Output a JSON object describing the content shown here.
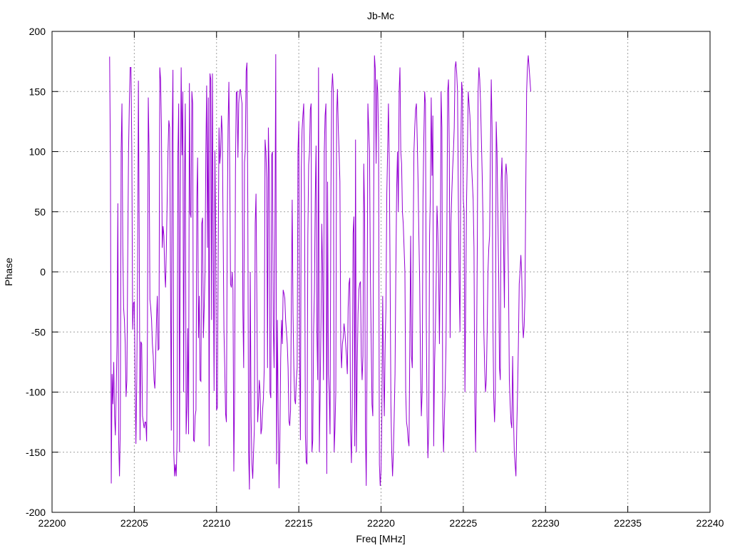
{
  "chart_data": {
    "type": "line",
    "title": "Jb-Mc",
    "xlabel": "Freq [MHz]",
    "ylabel": "Phase",
    "xlim": [
      22200,
      22240
    ],
    "ylim": [
      -200,
      200
    ],
    "xticks": [
      22200,
      22205,
      22210,
      22215,
      22220,
      22225,
      22230,
      22235,
      22240
    ],
    "yticks": [
      -200,
      -150,
      -100,
      -50,
      0,
      50,
      100,
      150,
      200
    ],
    "grid": true,
    "color": "#9400d3",
    "x_start": 22203.5,
    "x_step": 0.05,
    "series": [
      {
        "values": [
          179,
          90,
          -176,
          -85,
          -110,
          -75,
          -120,
          -136,
          -100,
          -60,
          57,
          -140,
          -170,
          -130,
          100,
          140,
          20,
          -30,
          -40,
          -60,
          -104,
          -90,
          10,
          100,
          140,
          170,
          170,
          100,
          -48,
          -26,
          -25,
          -90,
          -143,
          -90,
          0,
          159,
          30,
          -140,
          -58,
          -60,
          -120,
          -125,
          -130,
          -125,
          -125,
          -141,
          -50,
          145,
          100,
          -23,
          -30,
          -40,
          -60,
          -70,
          -90,
          -97,
          -70,
          -40,
          -20,
          -65,
          -64,
          170,
          160,
          120,
          20,
          38,
          30,
          0,
          -13,
          20,
          60,
          100,
          126,
          120,
          0,
          -132,
          108,
          168,
          -150,
          -170,
          -160,
          -170,
          -140,
          96,
          140,
          -150,
          60,
          170,
          97,
          150,
          -100,
          70,
          140,
          -135,
          -112,
          -47,
          -135,
          157,
          49,
          45,
          150,
          140,
          -140,
          -141,
          -120,
          -115,
          60,
          95,
          -55,
          -20,
          -90,
          -91,
          40,
          45,
          -55,
          -30,
          0,
          100,
          155,
          20,
          145,
          -145,
          165,
          160,
          -40,
          165,
          20,
          -99,
          101,
          30,
          -115,
          -113,
          10,
          120,
          90,
          100,
          130,
          115,
          35,
          -48,
          -80,
          -118,
          -125,
          36,
          120,
          158,
          90,
          -10,
          -13,
          0,
          -15,
          -166,
          -100,
          85,
          149,
          150,
          95,
          140,
          150,
          152,
          145,
          140,
          -30,
          -80,
          91,
          102,
          167,
          174,
          58,
          -150,
          -181,
          0,
          -120,
          -160,
          -172,
          -150,
          -130,
          40,
          65,
          -20,
          -125,
          -110,
          -90,
          -100,
          -135,
          -130,
          -115,
          -105,
          -80,
          110,
          100,
          78,
          -80,
          120,
          82,
          -100,
          -105,
          97,
          100,
          -45,
          -80,
          35,
          181,
          -160,
          -40,
          -120,
          -180,
          -140,
          -72,
          -40,
          -60,
          -15,
          -18,
          -22,
          -40,
          -50,
          -60,
          -80,
          -124,
          -128,
          -115,
          -20,
          60,
          -35,
          -80,
          -106,
          -110,
          -90,
          -80,
          100,
          125,
          -70,
          -140,
          85,
          118,
          130,
          140,
          60,
          -135,
          -158,
          -160,
          30,
          89,
          100,
          135,
          140,
          -150,
          -140,
          -50,
          -15,
          60,
          105,
          -50,
          -90,
          170,
          -150,
          -100,
          -40,
          40,
          0,
          -90,
          100,
          130,
          140,
          -168,
          75,
          -85,
          -100,
          -135,
          60,
          150,
          165,
          150,
          -150,
          -130,
          -100,
          130,
          152,
          120,
          100,
          75,
          -60,
          -80,
          -60,
          -55,
          -43,
          -50,
          -60,
          -70,
          -85,
          -30,
          -10,
          -5,
          -133,
          -159,
          -112,
          32,
          46,
          -145,
          110,
          -150,
          -80,
          -35,
          -15,
          -10,
          -8,
          -70,
          -90,
          -70,
          90,
          50,
          -130,
          -178,
          -70,
          140,
          120,
          101,
          0,
          -55,
          -110,
          -120,
          55,
          180,
          169,
          90,
          160,
          150,
          110,
          -160,
          -178,
          -165,
          -120,
          -20,
          -80,
          -120,
          -60,
          -30,
          65,
          100,
          140,
          92,
          0,
          -110,
          -150,
          -170,
          -150,
          -120,
          -85,
          0,
          70,
          100,
          50,
          150,
          170,
          100,
          90,
          50,
          40,
          20,
          0,
          -100,
          -125,
          -130,
          -140,
          -145,
          -60,
          30,
          -70,
          -80,
          18,
          100,
          120,
          135,
          140,
          110,
          75,
          30,
          -10,
          -80,
          -120,
          -100,
          60,
          110,
          150,
          140,
          -40,
          -120,
          -155,
          -130,
          30,
          65,
          145,
          80,
          130,
          -145,
          -80,
          -50,
          -10,
          55,
          35,
          0,
          -60,
          10,
          150,
          120,
          -120,
          -150,
          -120,
          -97,
          -60,
          30,
          150,
          160,
          100,
          -55,
          40,
          65,
          85,
          100,
          120,
          170,
          175,
          165,
          150,
          60,
          -10,
          -50,
          100,
          158,
          150,
          60,
          50,
          -100,
          -20,
          60,
          100,
          150,
          140,
          130,
          110,
          90,
          75,
          60,
          20,
          -110,
          -150,
          -80,
          20,
          150,
          170,
          160,
          140,
          110,
          80,
          40,
          -50,
          -80,
          -100,
          -90,
          -50,
          0,
          20,
          30,
          100,
          160,
          120,
          -40,
          -105,
          -125,
          -100,
          125,
          100,
          50,
          0,
          -80,
          -90,
          75,
          95,
          60,
          20,
          -30,
          80,
          90,
          80,
          40,
          -10,
          -90,
          -110,
          -125,
          -130,
          -70,
          -120,
          -150,
          -160,
          -170,
          -130,
          -100,
          -60,
          -10,
          0,
          14,
          -2,
          -40,
          -55,
          -45,
          -20,
          70,
          150,
          170,
          180,
          170,
          160,
          150
        ]
      }
    ]
  }
}
